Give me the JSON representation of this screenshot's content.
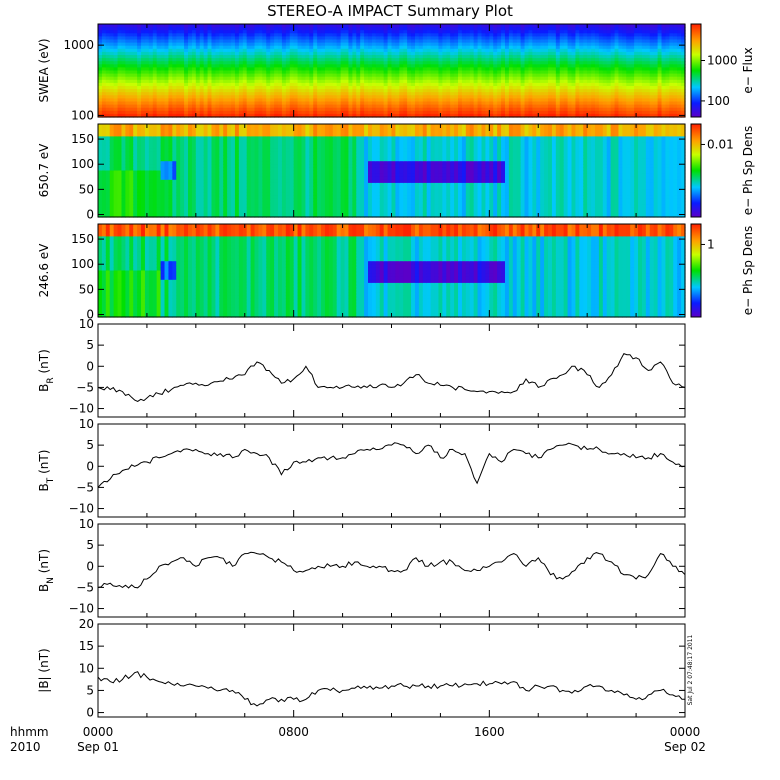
{
  "chart_data": {
    "title": "STEREO-A IMPACT Summary Plot",
    "type": "multi-panel",
    "x_axis": {
      "tick_labels_top": [
        "0000",
        "0800",
        "1600",
        "0000"
      ],
      "tick_labels_bottom": [
        "Sep 01",
        "",
        "",
        "Sep 02"
      ],
      "corner_label_top": "hhmm",
      "corner_label_bottom": "2010",
      "range_hours": [
        0,
        24
      ]
    },
    "panels": [
      {
        "id": "swea",
        "type": "heatmap",
        "ylabel": "SWEA (eV)",
        "y_scale": "log",
        "ylim": [
          95,
          2000
        ],
        "y_ticks": [
          100,
          1000
        ],
        "y_tick_labels": [
          "100",
          "1000"
        ],
        "colorbar": {
          "label": "e− Flux",
          "scale": "log",
          "tick_labels": [
            "100",
            "1000"
          ],
          "tick_values": [
            100,
            1000
          ],
          "range": [
            40,
            8000
          ]
        },
        "description_values": {
          "low_energy_flux": "high",
          "high_energy_flux": "low"
        }
      },
      {
        "id": "pad650",
        "type": "heatmap",
        "ylabel": "650.7 eV",
        "ylim": [
          -5,
          180
        ],
        "y_ticks": [
          0,
          50,
          100,
          150
        ],
        "y_tick_labels": [
          "0",
          "50",
          "100",
          "150"
        ],
        "colorbar": {
          "label": "e− Ph Sp Dens",
          "tick_labels": [
            "0.01"
          ]
        }
      },
      {
        "id": "pad246",
        "type": "heatmap",
        "ylabel": "246.6 eV",
        "ylim": [
          -5,
          180
        ],
        "y_ticks": [
          0,
          50,
          100,
          150
        ],
        "y_tick_labels": [
          "0",
          "50",
          "100",
          "150"
        ],
        "colorbar": {
          "label": "e− Ph Sp Dens",
          "tick_labels": [
            "1"
          ]
        }
      },
      {
        "id": "br",
        "type": "line",
        "ylabel_main": "B",
        "ylabel_sub": "R",
        "ylabel_unit": " (nT)",
        "ylim": [
          -12,
          10
        ],
        "y_ticks": [
          -10,
          -5,
          0,
          5,
          10
        ],
        "y_tick_labels": [
          "−10",
          "−5",
          "0",
          "5",
          "10"
        ],
        "x_hours": [
          0,
          0.5,
          1,
          1.5,
          2,
          2.5,
          3,
          3.5,
          4,
          4.5,
          5,
          5.5,
          6,
          6.5,
          7,
          7.5,
          8,
          8.5,
          9,
          9.5,
          10,
          10.5,
          11,
          11.5,
          12,
          12.5,
          13,
          13.5,
          14,
          14.5,
          15,
          15.5,
          16,
          16.5,
          17,
          17.5,
          18,
          18.5,
          19,
          19.5,
          20,
          20.5,
          21,
          21.5,
          22,
          22.5,
          23,
          23.5,
          24
        ],
        "values": [
          -5,
          -5.5,
          -6,
          -8,
          -7.5,
          -6.5,
          -5.5,
          -4.5,
          -4,
          -4.5,
          -3.5,
          -3,
          -2,
          1,
          -1,
          -4,
          -3,
          0,
          -5,
          -5,
          -5,
          -5,
          -5,
          -4.5,
          -5,
          -4,
          -2,
          -4,
          -4.5,
          -5,
          -5.5,
          -6,
          -6,
          -6,
          -6,
          -3,
          -5,
          -3,
          -2,
          0,
          -2,
          -5,
          -2,
          3,
          2,
          -1,
          1,
          -4,
          -5
        ]
      },
      {
        "id": "bt",
        "type": "line",
        "ylabel_main": "B",
        "ylabel_sub": "T",
        "ylabel_unit": " (nT)",
        "ylim": [
          -12,
          10
        ],
        "y_ticks": [
          -10,
          -5,
          0,
          5,
          10
        ],
        "y_tick_labels": [
          "−10",
          "−5",
          "0",
          "5",
          "10"
        ],
        "x_hours": [
          0,
          0.5,
          1,
          1.5,
          2,
          2.5,
          3,
          3.5,
          4,
          4.5,
          5,
          5.5,
          6,
          6.5,
          7,
          7.5,
          8,
          8.5,
          9,
          9.5,
          10,
          10.5,
          11,
          11.5,
          12,
          12.5,
          13,
          13.5,
          14,
          14.5,
          15,
          15.5,
          16,
          16.5,
          17,
          17.5,
          18,
          18.5,
          19,
          19.5,
          20,
          20.5,
          21,
          21.5,
          22,
          22.5,
          23,
          23.5,
          24
        ],
        "values": [
          -5,
          -3,
          -1,
          0,
          1,
          2,
          3,
          4,
          4,
          3,
          3,
          2,
          4,
          3,
          2,
          -2,
          1,
          1,
          2,
          2,
          2,
          3,
          4,
          4,
          5,
          5,
          3,
          5,
          2,
          4,
          3,
          -4,
          3,
          1,
          4,
          3,
          2,
          4,
          5,
          5,
          4,
          4,
          3,
          3,
          2,
          2,
          3,
          1,
          0
        ]
      },
      {
        "id": "bn",
        "type": "line",
        "ylabel_main": "B",
        "ylabel_sub": "N",
        "ylabel_unit": " (nT)",
        "ylim": [
          -12,
          10
        ],
        "y_ticks": [
          -10,
          -5,
          0,
          5,
          10
        ],
        "y_tick_labels": [
          "−10",
          "−5",
          "0",
          "5",
          "10"
        ],
        "x_hours": [
          0,
          0.5,
          1,
          1.5,
          2,
          2.5,
          3,
          3.5,
          4,
          4.5,
          5,
          5.5,
          6,
          6.5,
          7,
          7.5,
          8,
          8.5,
          9,
          9.5,
          10,
          10.5,
          11,
          11.5,
          12,
          12.5,
          13,
          13.5,
          14,
          14.5,
          15,
          15.5,
          16,
          16.5,
          17,
          17.5,
          18,
          18.5,
          19,
          19.5,
          20,
          20.5,
          21,
          21.5,
          22,
          22.5,
          23,
          23.5,
          24
        ],
        "values": [
          -5,
          -4,
          -5,
          -5,
          -3,
          0,
          1,
          2,
          0,
          2,
          2,
          0,
          3,
          3,
          2,
          1,
          -1,
          -1,
          0,
          0,
          0,
          1,
          0,
          0,
          -1,
          -1,
          2,
          0,
          1,
          1,
          -1,
          -1,
          0,
          1,
          3,
          0,
          2,
          -2,
          -3,
          -1,
          2,
          3,
          1,
          -2,
          -3,
          -2,
          3,
          0,
          -2
        ]
      },
      {
        "id": "bmag",
        "type": "line",
        "ylabel": "|B| (nT)",
        "ylim": [
          -1,
          20
        ],
        "y_ticks": [
          0,
          5,
          10,
          15,
          20
        ],
        "y_tick_labels": [
          "0",
          "5",
          "10",
          "15",
          "20"
        ],
        "x_hours": [
          0,
          0.5,
          1,
          1.5,
          2,
          2.5,
          3,
          3.5,
          4,
          4.5,
          5,
          5.5,
          6,
          6.5,
          7,
          7.5,
          8,
          8.5,
          9,
          9.5,
          10,
          10.5,
          11,
          11.5,
          12,
          12.5,
          13,
          13.5,
          14,
          14.5,
          15,
          15.5,
          16,
          16.5,
          17,
          17.5,
          18,
          18.5,
          19,
          19.5,
          20,
          20.5,
          21,
          21.5,
          22,
          22.5,
          23,
          23.5,
          24
        ],
        "values": [
          8,
          7,
          7.5,
          9,
          8,
          7,
          6.5,
          6,
          6,
          5.5,
          5,
          5,
          3,
          1.5,
          3,
          3,
          3,
          3,
          5,
          5,
          5,
          5.5,
          5.5,
          5.5,
          6,
          6,
          6,
          6,
          6,
          6,
          6.5,
          6.5,
          6.5,
          6.5,
          7,
          5,
          6,
          6,
          5,
          5,
          6,
          6,
          5,
          4,
          3,
          4,
          5,
          4,
          3
        ]
      }
    ],
    "timestamp": "Sat Jul  2 07:48:17 2011"
  }
}
